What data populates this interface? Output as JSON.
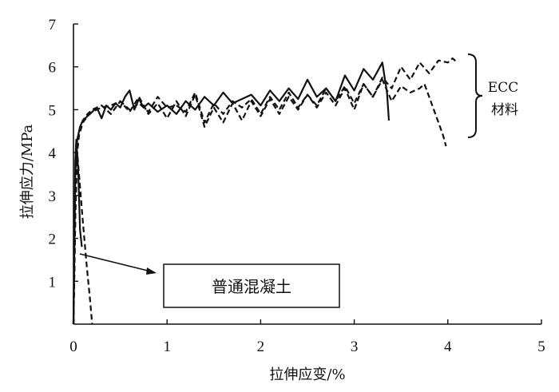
{
  "chart_data": {
    "type": "line",
    "title": "",
    "xlabel": "拉伸应变/%",
    "ylabel": "拉伸应力/MPa",
    "xlim": [
      0,
      5
    ],
    "ylim": [
      0,
      7
    ],
    "xticks": [
      "0",
      "1",
      "2",
      "3",
      "4",
      "5"
    ],
    "yticks": [
      "1",
      "2",
      "3",
      "4",
      "5",
      "6",
      "7"
    ],
    "grid": false,
    "legend": "none",
    "series": [
      {
        "style": "solid",
        "x": [
          0.0,
          0.02,
          0.04,
          0.07,
          0.1,
          0.15,
          0.2,
          0.25,
          0.3,
          0.35,
          0.4,
          0.45,
          0.5,
          0.55,
          0.6,
          0.65,
          0.7,
          0.75,
          0.8,
          0.9,
          1.0,
          1.1,
          1.2,
          1.3,
          1.4,
          1.5,
          1.6,
          1.7,
          1.8,
          1.9,
          2.0,
          2.1,
          2.2,
          2.3,
          2.4,
          2.5,
          2.6,
          2.7,
          2.8,
          2.9,
          3.0,
          3.1,
          3.2,
          3.3,
          3.35,
          3.37
        ],
        "y": [
          0.0,
          3.5,
          4.3,
          4.6,
          4.75,
          4.85,
          4.95,
          5.05,
          4.8,
          5.1,
          5.0,
          5.15,
          5.05,
          5.3,
          5.45,
          5.0,
          5.25,
          5.05,
          5.15,
          4.95,
          5.1,
          4.9,
          5.2,
          5.0,
          5.3,
          5.1,
          5.4,
          5.15,
          5.25,
          5.35,
          5.1,
          5.45,
          5.2,
          5.5,
          5.25,
          5.7,
          5.3,
          5.5,
          5.2,
          5.8,
          5.45,
          5.95,
          5.7,
          6.1,
          5.4,
          4.75
        ]
      },
      {
        "style": "dashed",
        "x": [
          0.0,
          0.03,
          0.06,
          0.1,
          0.15,
          0.2,
          0.3,
          0.4,
          0.5,
          0.6,
          0.7,
          0.8,
          0.9,
          1.0,
          1.1,
          1.2,
          1.3,
          1.4,
          1.5,
          1.6,
          1.7,
          1.8,
          1.9,
          2.0,
          2.1,
          2.2,
          2.3,
          2.4,
          2.5,
          2.6,
          2.7,
          2.8,
          2.9,
          3.0,
          3.1,
          3.2,
          3.3,
          3.4,
          3.5,
          3.6,
          3.7,
          3.8,
          3.9,
          4.0,
          4.05,
          4.1
        ],
        "y": [
          0.0,
          3.8,
          4.4,
          4.7,
          4.85,
          4.95,
          5.05,
          5.1,
          5.2,
          5.0,
          5.15,
          4.95,
          5.3,
          5.05,
          5.1,
          4.95,
          5.4,
          4.7,
          5.15,
          4.9,
          5.2,
          5.05,
          5.25,
          4.9,
          5.3,
          5.0,
          5.4,
          5.05,
          5.35,
          5.1,
          5.5,
          5.2,
          5.55,
          5.15,
          5.6,
          5.3,
          5.75,
          5.5,
          6.0,
          5.7,
          6.1,
          5.85,
          6.15,
          6.1,
          6.2,
          6.1
        ]
      },
      {
        "style": "dashed",
        "x": [
          0.0,
          0.03,
          0.06,
          0.1,
          0.15,
          0.2,
          0.3,
          0.4,
          0.5,
          0.6,
          0.7,
          0.8,
          0.9,
          1.0,
          1.1,
          1.2,
          1.3,
          1.4,
          1.5,
          1.6,
          1.7,
          1.8,
          1.9,
          2.0,
          2.1,
          2.2,
          2.3,
          2.4,
          2.5,
          2.6,
          2.7,
          2.8,
          2.9,
          3.0,
          3.1,
          3.2,
          3.3,
          3.4,
          3.5,
          3.6,
          3.7,
          3.75,
          3.8,
          3.85,
          3.9,
          3.95,
          3.98
        ],
        "y": [
          0.0,
          4.0,
          4.5,
          4.75,
          4.9,
          5.0,
          5.1,
          4.9,
          5.2,
          4.95,
          5.3,
          4.9,
          5.15,
          4.8,
          5.2,
          4.85,
          5.35,
          4.6,
          5.05,
          4.7,
          5.15,
          4.75,
          5.2,
          4.85,
          5.25,
          4.9,
          5.3,
          5.0,
          5.35,
          5.05,
          5.4,
          5.1,
          5.5,
          5.0,
          5.6,
          5.3,
          5.7,
          5.2,
          5.55,
          5.4,
          5.5,
          5.6,
          5.3,
          5.0,
          4.7,
          4.4,
          4.15
        ]
      },
      {
        "style": "dashed",
        "x": [
          0.0,
          0.02,
          0.04,
          0.07,
          0.1,
          0.14,
          0.18,
          0.2
        ],
        "y": [
          0.0,
          2.5,
          4.0,
          3.2,
          2.4,
          1.4,
          0.5,
          0.0
        ]
      },
      {
        "style": "solid",
        "x": [
          0.0,
          0.01,
          0.02,
          0.03,
          0.05,
          0.07,
          0.09
        ],
        "y": [
          0.0,
          2.0,
          3.8,
          4.3,
          3.6,
          2.2,
          1.8
        ]
      }
    ],
    "annotations": {
      "ecc_line1": "ECC",
      "ecc_line2": "材料",
      "concrete": "普通混凝土"
    }
  }
}
